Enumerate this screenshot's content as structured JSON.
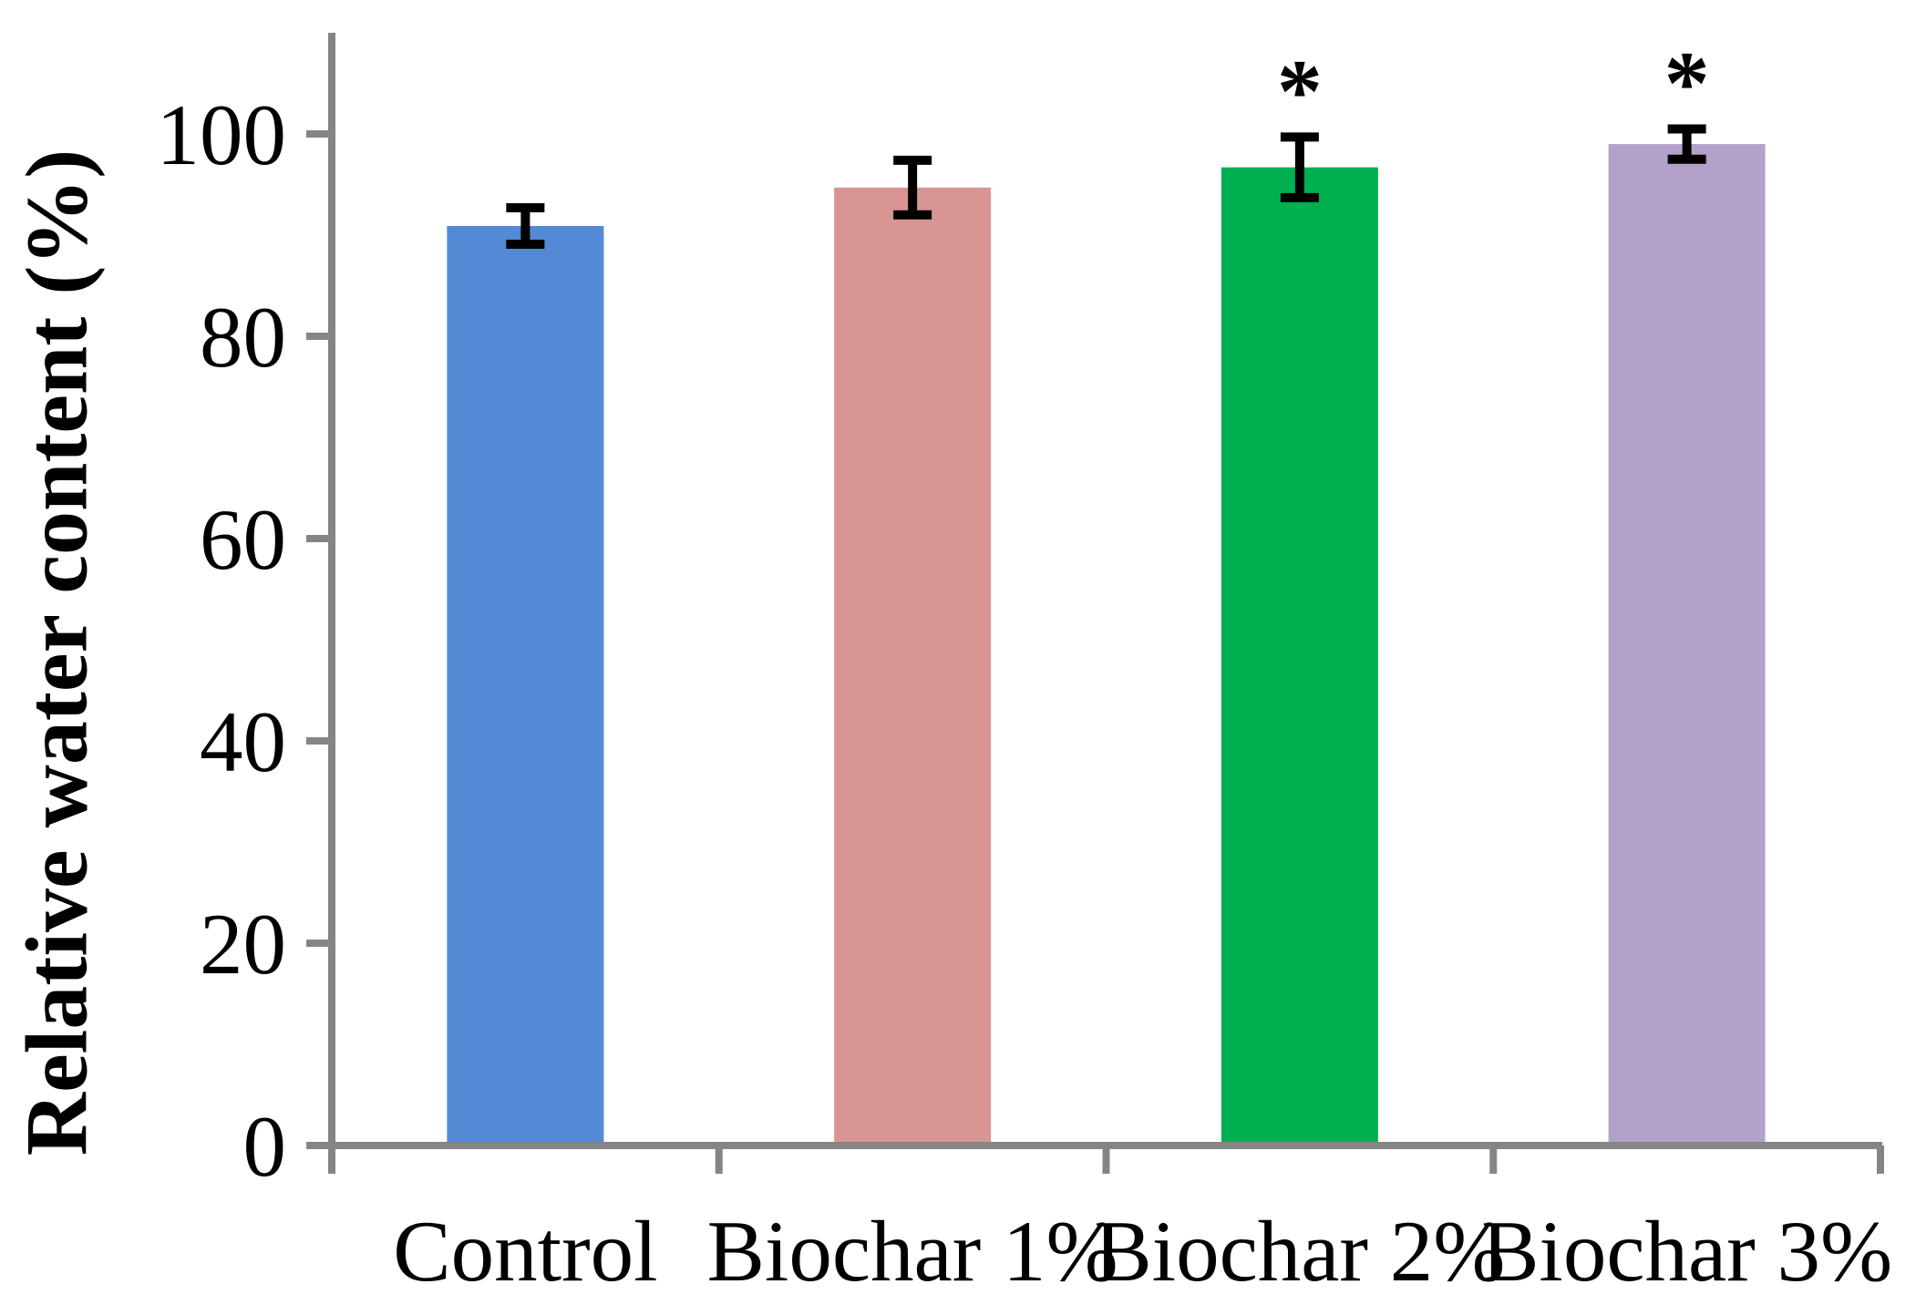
{
  "chart_data": {
    "type": "bar",
    "title": "",
    "xlabel": "",
    "ylabel": "Relative water content (%)",
    "categories": [
      "Control",
      "Biochar 1%",
      "Biochar 2%",
      "Biochar 3%"
    ],
    "values": [
      90.9,
      94.7,
      96.7,
      99.0
    ],
    "error_bars": [
      1.8,
      2.7,
      3.0,
      1.5
    ],
    "significance_markers": [
      "",
      "",
      "*",
      "*"
    ],
    "bar_colors": [
      "#5389D5",
      "#D99593",
      "#00B050",
      "#B2A2C9"
    ],
    "axis_color": "#858585",
    "error_bar_color": "#000000",
    "text_color": "#000000",
    "ylim": [
      0,
      110
    ],
    "yticks": [
      0,
      20,
      40,
      60,
      80,
      100
    ],
    "grid": false,
    "legend": "none"
  }
}
